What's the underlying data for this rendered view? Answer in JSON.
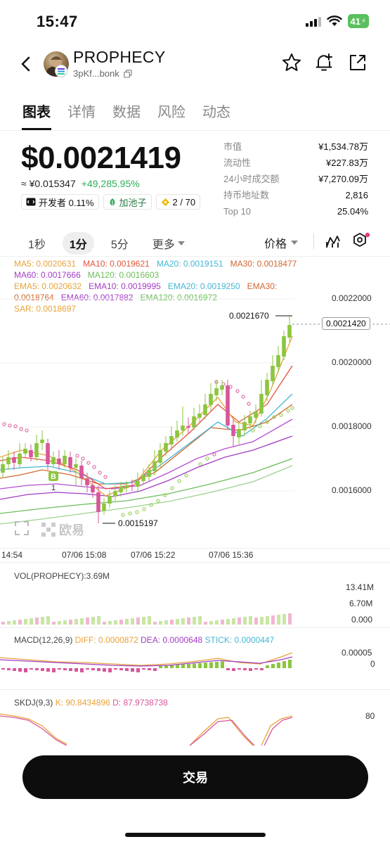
{
  "status_bar": {
    "time": "15:47",
    "battery": "41"
  },
  "header": {
    "token_name": "PROPHECY",
    "address": "3pKf...bonk"
  },
  "tabs": [
    {
      "label": "图表",
      "active": true
    },
    {
      "label": "详情"
    },
    {
      "label": "数据"
    },
    {
      "label": "风险"
    },
    {
      "label": "动态"
    }
  ],
  "price": {
    "value": "$0.0021419",
    "cny": "≈ ¥0.015347",
    "change": "+49,285.95%"
  },
  "chips": {
    "developer": "开发者 0.11%",
    "pool": "加池子",
    "count": "2 / 70"
  },
  "stats": [
    {
      "label": "市值",
      "value": "¥1,534.78万"
    },
    {
      "label": "流动性",
      "value": "¥227.83万"
    },
    {
      "label": "24小时成交额",
      "value": "¥7,270.09万"
    },
    {
      "label": "持币地址数",
      "value": "2,816"
    },
    {
      "label": "Top 10",
      "value": "25.04%"
    }
  ],
  "chart_toolbar": {
    "intervals": [
      "1秒",
      "1分",
      "5分",
      "更多"
    ],
    "active_interval": "1分",
    "price_type": "价格"
  },
  "indicators": {
    "ma5": "MA5: 0.0020631",
    "ma10": "MA10: 0.0019621",
    "ma20": "MA20: 0.0019151",
    "ma30": "MA30: 0.0018477",
    "ma60": "MA60: 0.0017666",
    "ma120": "MA120: 0.0016603",
    "ema5": "EMA5: 0.0020632",
    "ema10": "EMA10: 0.0019995",
    "ema20": "EMA20: 0.0019250",
    "ema30_a": "EMA30:",
    "ema30_b": "0.0018764",
    "ema60": "EMA60: 0.0017882",
    "ema120": "EMA120: 0.0016972",
    "sar": "SAR: 0.0018697"
  },
  "colors": {
    "up": "#8cc63f",
    "down": "#d7569a",
    "ma5": "#e8a33b",
    "ma10": "#e0543e",
    "ma20": "#43b7d6",
    "ma30": "#d0682f",
    "ma60": "#a23cc4",
    "ma120": "#6dbd5a"
  },
  "chart_data": {
    "type": "candlestick",
    "y_axis_labels": [
      "0.0022000",
      "0.0020000",
      "0.0018000",
      "0.0016000"
    ],
    "high_marker": "0.0021670",
    "low_marker": "0.0015197",
    "current_price": "0.0021420",
    "x_axis_labels": [
      "14:54",
      "07/06 15:08",
      "07/06 15:22",
      "07/06 15:36"
    ],
    "buy_marker": "B",
    "buy_marker_count": "1"
  },
  "volume": {
    "title": "VOL(PROPHECY):3.69M",
    "axis": [
      "13.41M",
      "6.70M",
      "0.000"
    ]
  },
  "macd": {
    "title": "MACD(12,26,9)",
    "diff": "DIFF: 0.0000872",
    "dea": "DEA: 0.0000648",
    "stick": "STICK: 0.0000447",
    "axis": [
      "0.00005",
      "0"
    ]
  },
  "skdj": {
    "title": "SKDJ(9,3)",
    "k": "K: 90.8434896",
    "d": "D: 87.9738738",
    "axis": [
      "80"
    ]
  },
  "watermark": "欧易",
  "trade_button": "交易"
}
